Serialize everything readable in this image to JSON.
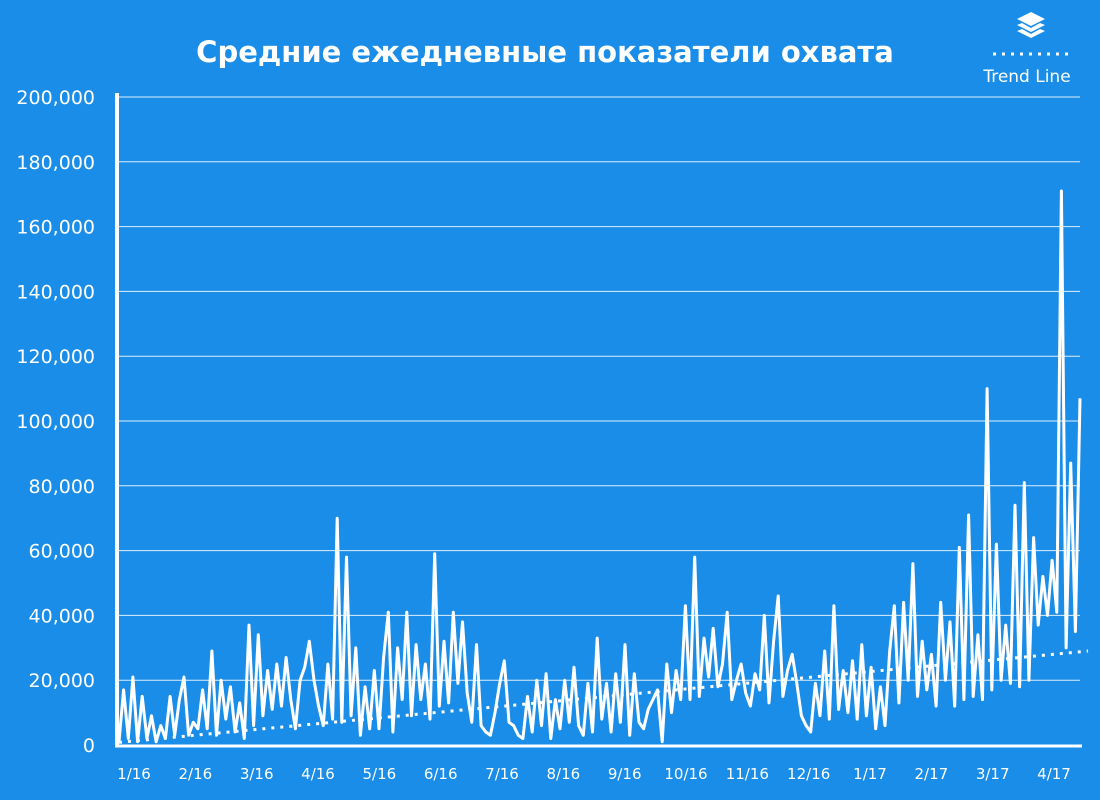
{
  "colors": {
    "background": "#1a8de8",
    "foreground": "#ffffff"
  },
  "legend": {
    "icon": "layers-icon",
    "label": "Trend Line"
  },
  "chart_data": {
    "type": "line",
    "title": "Средние ежедневные показатели охвата",
    "xlabel": "",
    "ylabel": "",
    "ylim": [
      0,
      200000
    ],
    "yticks": [
      "0",
      "20,000",
      "40,000",
      "60,000",
      "80,000",
      "100,000",
      "120,000",
      "140,000",
      "160,000",
      "180,000",
      "200,000"
    ],
    "ytick_values": [
      0,
      20000,
      40000,
      60000,
      80000,
      100000,
      120000,
      140000,
      160000,
      180000,
      200000
    ],
    "xticks": [
      "1/16",
      "2/16",
      "3/16",
      "4/16",
      "5/16",
      "6/16",
      "7/16",
      "8/16",
      "9/16",
      "10/16",
      "11/16",
      "12/16",
      "1/17",
      "2/17",
      "3/17",
      "4/17"
    ],
    "grid": "horizontal",
    "legend_position": "top-right",
    "series": [
      {
        "values": [
          1000,
          17000,
          2000,
          21000,
          1000,
          15000,
          2000,
          9000,
          1000,
          6000,
          2000,
          15000,
          3000,
          14000,
          21000,
          3000,
          7000,
          5000,
          17000,
          5000,
          29000,
          3000,
          20000,
          8000,
          18000,
          4000,
          13000,
          2000,
          37000,
          6000,
          34000,
          9000,
          23000,
          11000,
          25000,
          12000,
          27000,
          14000,
          5000,
          20000,
          24000,
          32000,
          20000,
          12000,
          6000,
          25000,
          8000,
          70000,
          7000,
          58000,
          9000,
          30000,
          3000,
          18000,
          5000,
          23000,
          5000,
          27000,
          41000,
          4000,
          30000,
          14000,
          41000,
          9000,
          31000,
          14000,
          25000,
          8000,
          59000,
          12000,
          32000,
          13000,
          41000,
          19000,
          38000,
          16000,
          7000,
          31000,
          6000,
          4000,
          3000,
          10000,
          19000,
          26000,
          7000,
          6000,
          3000,
          2000,
          15000,
          4000,
          20000,
          6000,
          22000,
          2000,
          14000,
          5000,
          20000,
          7000,
          24000,
          6000,
          3000,
          19000,
          4000,
          33000,
          8000,
          19000,
          4000,
          22000,
          7000,
          31000,
          3000,
          22000,
          7000,
          5000,
          11000,
          14000,
          17000,
          1000,
          25000,
          10000,
          23000,
          14000,
          43000,
          14000,
          58000,
          15000,
          33000,
          21000,
          36000,
          18000,
          25000,
          41000,
          14000,
          20000,
          25000,
          16000,
          12000,
          22000,
          17000,
          40000,
          13000,
          32000,
          46000,
          15000,
          23000,
          28000,
          19000,
          9000,
          6000,
          4000,
          19000,
          9000,
          29000,
          8000,
          43000,
          11000,
          23000,
          10000,
          26000,
          8000,
          31000,
          9000,
          24000,
          5000,
          18000,
          6000,
          29000,
          43000,
          13000,
          44000,
          20000,
          56000,
          15000,
          32000,
          17000,
          28000,
          12000,
          44000,
          20000,
          38000,
          12000,
          61000,
          14000,
          71000,
          15000,
          34000,
          14000,
          110000,
          17000,
          62000,
          20000,
          37000,
          19000,
          74000,
          18000,
          81000,
          20000,
          64000,
          37000,
          52000,
          40000,
          57000,
          41000,
          171000,
          30000,
          87000,
          35000,
          107000
        ],
        "trend": [
          800,
          29000
        ]
      }
    ]
  }
}
